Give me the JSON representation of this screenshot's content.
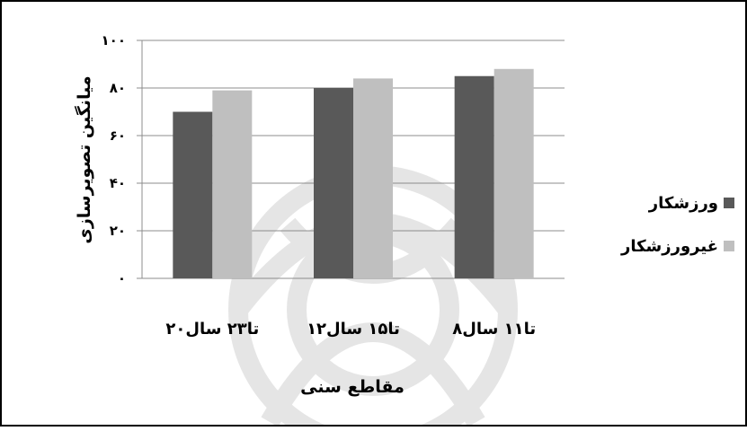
{
  "chart_data": {
    "type": "bar",
    "categories": [
      "۸تا۱۱ سال",
      "۱۲تا۱۵ سال",
      "۲۰تا۲۳ سال"
    ],
    "series": [
      {
        "name": "ورزشکار",
        "values": [
          85,
          80,
          70
        ],
        "color": "#595959"
      },
      {
        "name": "غیرورزشکار",
        "values": [
          88,
          84,
          79
        ],
        "color": "#bfbfbf"
      }
    ],
    "yticks": [
      "۰",
      "۲۰",
      "۴۰",
      "۶۰",
      "۸۰",
      "۱۰۰"
    ],
    "ylim": [
      0,
      100
    ],
    "xlabel": "مقاطع سنی",
    "ylabel": "میانگین تصویرسازی",
    "grid": true,
    "legend": "right",
    "category_order": "right-to-left",
    "watermark": "decorative-arabesque"
  }
}
